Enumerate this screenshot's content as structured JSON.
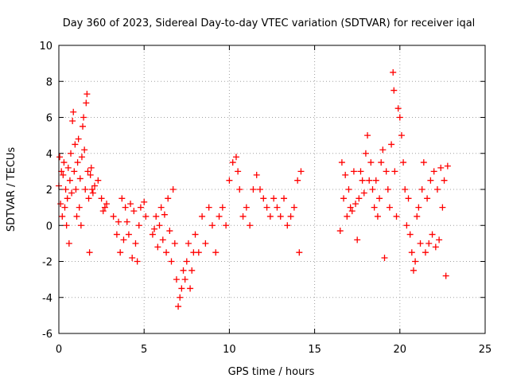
{
  "chart_data": {
    "type": "scatter",
    "title": "Day 360 of 2023, Sidereal Day-to-day VTEC variation (SDTVAR) for receiver iqal",
    "xlabel": "GPS time / hours",
    "ylabel": "SDTVAR / TECUs",
    "xlim": [
      0,
      25
    ],
    "ylim": [
      -6,
      10
    ],
    "xticks": [
      "0",
      "5",
      "10",
      "15",
      "20",
      "25"
    ],
    "yticks": [
      "-6",
      "-4",
      "-2",
      "0",
      "2",
      "4",
      "6",
      "8",
      "10"
    ],
    "grid": true,
    "marker": "+",
    "color": "#ff0000",
    "series": [
      {
        "name": "SDTVAR",
        "points": [
          [
            0.0,
            2.2
          ],
          [
            0.05,
            3.8
          ],
          [
            0.1,
            1.2
          ],
          [
            0.15,
            3.0
          ],
          [
            0.2,
            0.5
          ],
          [
            0.25,
            2.8
          ],
          [
            0.3,
            3.5
          ],
          [
            0.35,
            1.0
          ],
          [
            0.4,
            2.0
          ],
          [
            0.45,
            0.0
          ],
          [
            0.5,
            1.5
          ],
          [
            0.55,
            3.2
          ],
          [
            0.6,
            -1.0
          ],
          [
            0.65,
            2.5
          ],
          [
            0.7,
            4.0
          ],
          [
            0.75,
            1.8
          ],
          [
            0.8,
            5.8
          ],
          [
            0.85,
            6.3
          ],
          [
            0.9,
            3.0
          ],
          [
            0.95,
            4.5
          ],
          [
            1.0,
            2.0
          ],
          [
            1.05,
            0.5
          ],
          [
            1.1,
            3.5
          ],
          [
            1.15,
            4.8
          ],
          [
            1.2,
            1.0
          ],
          [
            1.25,
            2.6
          ],
          [
            1.3,
            0.0
          ],
          [
            1.35,
            3.8
          ],
          [
            1.4,
            5.5
          ],
          [
            1.45,
            6.0
          ],
          [
            1.5,
            4.2
          ],
          [
            1.55,
            2.0
          ],
          [
            1.6,
            6.8
          ],
          [
            1.65,
            7.3
          ],
          [
            1.7,
            3.0
          ],
          [
            1.75,
            1.5
          ],
          [
            1.8,
            -1.5
          ],
          [
            1.85,
            2.8
          ],
          [
            1.9,
            3.2
          ],
          [
            1.95,
            2.0
          ],
          [
            2.0,
            1.8
          ],
          [
            2.1,
            2.2
          ],
          [
            2.3,
            2.5
          ],
          [
            2.5,
            1.5
          ],
          [
            2.6,
            0.8
          ],
          [
            2.7,
            1.0
          ],
          [
            2.8,
            1.2
          ],
          [
            3.2,
            0.5
          ],
          [
            3.4,
            -0.5
          ],
          [
            3.5,
            0.2
          ],
          [
            3.6,
            -1.5
          ],
          [
            3.7,
            1.5
          ],
          [
            3.8,
            -0.8
          ],
          [
            3.9,
            1.0
          ],
          [
            4.0,
            0.2
          ],
          [
            4.1,
            -0.5
          ],
          [
            4.2,
            1.2
          ],
          [
            4.3,
            -1.8
          ],
          [
            4.4,
            0.8
          ],
          [
            4.5,
            -1.0
          ],
          [
            4.6,
            -2.0
          ],
          [
            4.7,
            0.0
          ],
          [
            4.8,
            1.0
          ],
          [
            5.0,
            1.3
          ],
          [
            5.1,
            0.5
          ],
          [
            5.5,
            -0.5
          ],
          [
            5.6,
            -0.2
          ],
          [
            5.7,
            0.5
          ],
          [
            5.8,
            -1.2
          ],
          [
            5.9,
            0.0
          ],
          [
            6.0,
            1.0
          ],
          [
            6.1,
            -0.8
          ],
          [
            6.2,
            0.6
          ],
          [
            6.3,
            -1.5
          ],
          [
            6.4,
            1.5
          ],
          [
            6.5,
            -0.3
          ],
          [
            6.6,
            -2.0
          ],
          [
            6.7,
            2.0
          ],
          [
            6.8,
            -1.0
          ],
          [
            6.9,
            -3.0
          ],
          [
            7.0,
            -4.5
          ],
          [
            7.1,
            -4.0
          ],
          [
            7.2,
            -3.5
          ],
          [
            7.3,
            -2.5
          ],
          [
            7.4,
            -3.0
          ],
          [
            7.5,
            -2.0
          ],
          [
            7.6,
            -1.0
          ],
          [
            7.7,
            -3.5
          ],
          [
            7.8,
            -2.5
          ],
          [
            7.9,
            -1.5
          ],
          [
            8.0,
            -0.5
          ],
          [
            8.2,
            -1.5
          ],
          [
            8.4,
            0.5
          ],
          [
            8.6,
            -1.0
          ],
          [
            8.8,
            1.0
          ],
          [
            9.0,
            0.0
          ],
          [
            9.2,
            -1.5
          ],
          [
            9.4,
            0.5
          ],
          [
            9.6,
            1.0
          ],
          [
            9.8,
            0.0
          ],
          [
            10.0,
            2.5
          ],
          [
            10.2,
            3.5
          ],
          [
            10.4,
            3.8
          ],
          [
            10.5,
            3.0
          ],
          [
            10.6,
            2.0
          ],
          [
            10.8,
            0.5
          ],
          [
            11.0,
            1.0
          ],
          [
            11.2,
            0.0
          ],
          [
            11.4,
            2.0
          ],
          [
            11.6,
            2.8
          ],
          [
            11.8,
            2.0
          ],
          [
            12.0,
            1.5
          ],
          [
            12.2,
            1.0
          ],
          [
            12.4,
            0.5
          ],
          [
            12.6,
            1.5
          ],
          [
            12.8,
            1.0
          ],
          [
            13.0,
            0.5
          ],
          [
            13.2,
            1.5
          ],
          [
            13.4,
            0.0
          ],
          [
            13.6,
            0.5
          ],
          [
            13.8,
            1.0
          ],
          [
            14.0,
            2.5
          ],
          [
            14.1,
            -1.5
          ],
          [
            14.2,
            3.0
          ],
          [
            16.5,
            -0.3
          ],
          [
            16.6,
            3.5
          ],
          [
            16.7,
            1.5
          ],
          [
            16.8,
            2.8
          ],
          [
            16.9,
            0.5
          ],
          [
            17.0,
            2.0
          ],
          [
            17.1,
            1.0
          ],
          [
            17.2,
            0.8
          ],
          [
            17.3,
            3.0
          ],
          [
            17.4,
            1.2
          ],
          [
            17.5,
            -0.8
          ],
          [
            17.6,
            1.5
          ],
          [
            17.7,
            3.0
          ],
          [
            17.8,
            2.5
          ],
          [
            17.9,
            1.8
          ],
          [
            18.0,
            4.0
          ],
          [
            18.1,
            5.0
          ],
          [
            18.2,
            2.5
          ],
          [
            18.3,
            3.5
          ],
          [
            18.4,
            2.0
          ],
          [
            18.5,
            1.0
          ],
          [
            18.6,
            2.5
          ],
          [
            18.7,
            0.5
          ],
          [
            18.8,
            1.5
          ],
          [
            18.9,
            3.5
          ],
          [
            19.0,
            4.2
          ],
          [
            19.1,
            -1.8
          ],
          [
            19.2,
            3.0
          ],
          [
            19.3,
            2.0
          ],
          [
            19.4,
            1.0
          ],
          [
            19.5,
            4.5
          ],
          [
            19.6,
            8.5
          ],
          [
            19.65,
            7.5
          ],
          [
            19.7,
            3.0
          ],
          [
            19.8,
            0.5
          ],
          [
            19.9,
            6.5
          ],
          [
            20.0,
            6.0
          ],
          [
            20.1,
            5.0
          ],
          [
            20.2,
            3.5
          ],
          [
            20.3,
            2.0
          ],
          [
            20.4,
            0.0
          ],
          [
            20.5,
            1.5
          ],
          [
            20.6,
            -0.5
          ],
          [
            20.7,
            -1.5
          ],
          [
            20.8,
            -2.5
          ],
          [
            20.9,
            -2.0
          ],
          [
            21.0,
            0.5
          ],
          [
            21.1,
            1.0
          ],
          [
            21.2,
            -1.0
          ],
          [
            21.3,
            2.0
          ],
          [
            21.4,
            3.5
          ],
          [
            21.5,
            -1.5
          ],
          [
            21.6,
            1.5
          ],
          [
            21.7,
            -1.0
          ],
          [
            21.8,
            2.5
          ],
          [
            21.9,
            -0.5
          ],
          [
            22.0,
            3.0
          ],
          [
            22.1,
            -1.2
          ],
          [
            22.2,
            2.0
          ],
          [
            22.3,
            -0.8
          ],
          [
            22.4,
            3.2
          ],
          [
            22.5,
            1.0
          ],
          [
            22.6,
            2.5
          ],
          [
            22.7,
            -2.8
          ],
          [
            22.8,
            3.3
          ]
        ]
      }
    ]
  }
}
